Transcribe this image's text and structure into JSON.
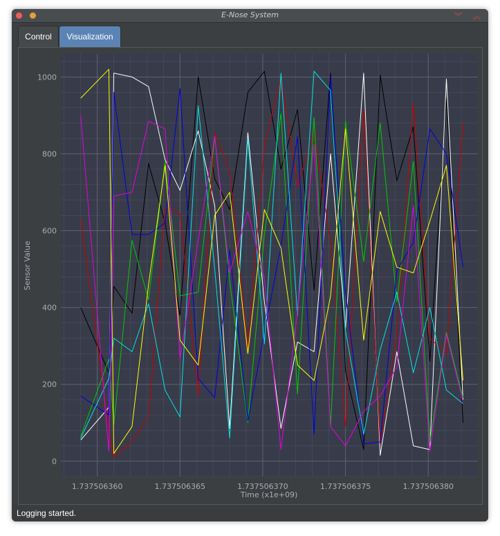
{
  "window": {
    "title": "E-Nose System"
  },
  "tabs": [
    {
      "label": "Control",
      "selected": false
    },
    {
      "label": "Visualization",
      "selected": true
    }
  ],
  "status": {
    "text": "Logging started."
  },
  "chart_data": {
    "type": "line",
    "xlabel": "Time (x1e+09)",
    "ylabel": "Sensor Value",
    "xlim": [
      1.7375063578,
      1.737506383
    ],
    "ylim": [
      -40,
      1060
    ],
    "x_ticks": [
      "1.737506360",
      "1.737506365",
      "1.737506370",
      "1.737506375",
      "1.737506380"
    ],
    "x_tick_values": [
      1.73750636,
      1.737506365,
      1.73750637,
      1.737506375,
      1.73750638
    ],
    "y_ticks": [
      "0",
      "200",
      "400",
      "600",
      "800",
      "1000"
    ],
    "y_tick_values": [
      0,
      200,
      400,
      600,
      800,
      1000
    ],
    "grid": true,
    "x_times": [
      1.737506359,
      1.7375063607,
      1.737506361,
      1.7375063621,
      1.7375063631,
      1.7375063641,
      1.737506365,
      1.7375063661,
      1.7375063671,
      1.737506368,
      1.7375063691,
      1.7375063701,
      1.7375063711,
      1.7375063721,
      1.7375063731,
      1.7375063741,
      1.737506375,
      1.7375063761,
      1.7375063771,
      1.7375063781,
      1.7375063791,
      1.7375063801,
      1.7375063811,
      1.7375063821
    ],
    "series": [
      {
        "color": "#000000",
        "values": [
          400,
          230,
          455,
          385,
          775,
          620,
          380,
          1000,
          735,
          655,
          960,
          1015,
          760,
          915,
          445,
          1010,
          235,
          30,
          1005,
          730,
          870,
          260,
          945,
          100
        ]
      },
      {
        "color": "#ffffff",
        "values": [
          55,
          140,
          1010,
          1000,
          975,
          785,
          705,
          860,
          665,
          85,
          855,
          415,
          85,
          310,
          285,
          800,
          345,
          1010,
          15,
          285,
          40,
          30,
          995,
          160
        ]
      },
      {
        "color": "#cc0000",
        "values": [
          630,
          80,
          10,
          50,
          115,
          660,
          645,
          170,
          855,
          755,
          295,
          820,
          1000,
          715,
          855,
          570,
          90,
          915,
          45,
          330,
          930,
          320,
          280,
          880
        ]
      },
      {
        "color": "#00cc00",
        "values": [
          65,
          265,
          95,
          575,
          420,
          780,
          430,
          440,
          845,
          470,
          100,
          590,
          905,
          175,
          895,
          90,
          885,
          520,
          880,
          415,
          780,
          50,
          335,
          165
        ]
      },
      {
        "color": "#0000dd",
        "values": [
          170,
          120,
          960,
          590,
          590,
          620,
          970,
          215,
          165,
          550,
          105,
          335,
          560,
          845,
          70,
          1000,
          440,
          45,
          50,
          495,
          570,
          865,
          800,
          505
        ]
      },
      {
        "color": "#00e5e5",
        "values": [
          60,
          215,
          320,
          285,
          410,
          185,
          115,
          925,
          500,
          60,
          840,
          305,
          1010,
          380,
          1015,
          965,
          340,
          70,
          290,
          440,
          230,
          400,
          185,
          150
        ]
      },
      {
        "color": "#e600e6",
        "values": [
          900,
          25,
          690,
          700,
          885,
          865,
          265,
          575,
          845,
          490,
          650,
          475,
          30,
          390,
          825,
          90,
          40,
          130,
          170,
          245,
          665,
          25,
          330,
          155
        ]
      },
      {
        "color": "#ffff00",
        "values": [
          945,
          1020,
          20,
          90,
          460,
          770,
          315,
          250,
          640,
          700,
          280,
          655,
          555,
          250,
          210,
          430,
          865,
          315,
          650,
          505,
          490,
          625,
          770,
          210
        ]
      }
    ]
  }
}
